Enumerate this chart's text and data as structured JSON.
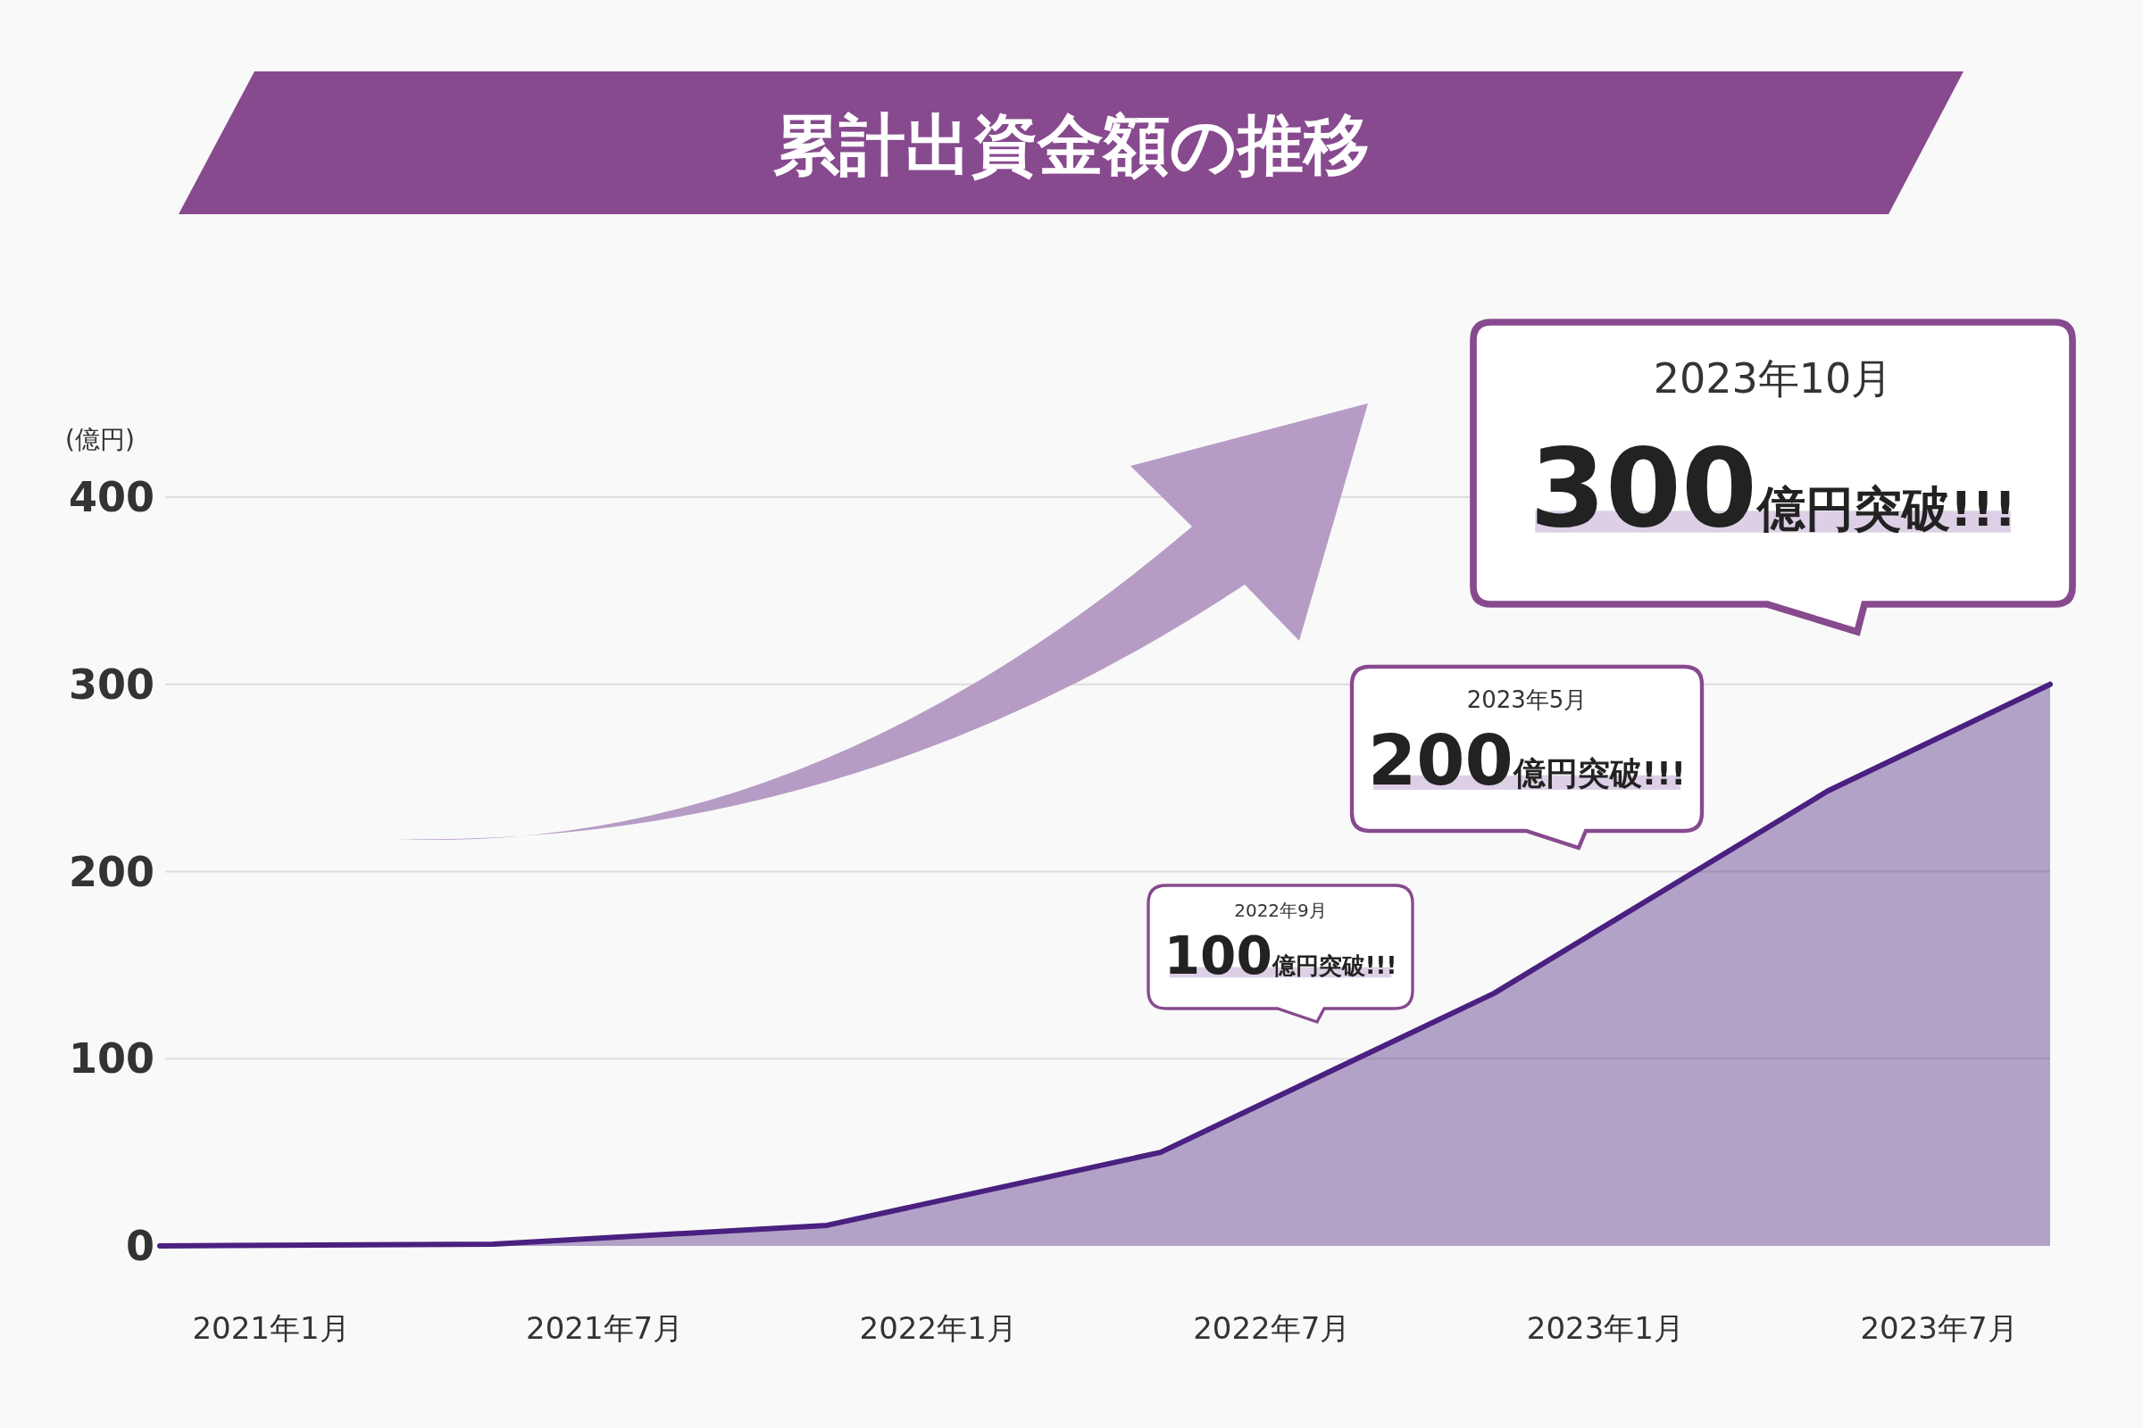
{
  "chart_data": {
    "type": "area",
    "title": "累計出資金額の推移",
    "ylabel": "(億円)",
    "x": [
      "2020-11",
      "2021-05",
      "2021-11",
      "2022-05",
      "2022-11",
      "2023-05",
      "2023-09"
    ],
    "series": [
      {
        "color": "#4a2080",
        "values": [
          0,
          1,
          11,
          50,
          135,
          243,
          300
        ]
      }
    ],
    "xlim": [
      "2020-11",
      "2023-09"
    ],
    "xticks": [
      {
        "value": "2021-01",
        "label": "2021年1月"
      },
      {
        "value": "2021-07",
        "label": "2021年7月"
      },
      {
        "value": "2022-01",
        "label": "2022年1月"
      },
      {
        "value": "2022-07",
        "label": "2022年7月"
      },
      {
        "value": "2023-01",
        "label": "2023年1月"
      },
      {
        "value": "2023-07",
        "label": "2023年7月"
      }
    ],
    "ylim": [
      0,
      400
    ],
    "yticks": [
      0,
      100,
      200,
      300,
      400
    ],
    "grid": "y",
    "annotations": [
      "2022年9月",
      "100億円突破!!!",
      "2023年5月",
      "200億円突破!!!",
      "2023年10月",
      "300億円突破!!!"
    ]
  }
}
